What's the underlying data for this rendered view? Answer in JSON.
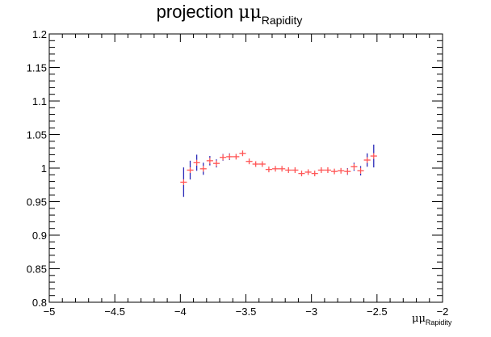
{
  "chart_data": {
    "type": "scatter",
    "title_main": "projection ",
    "title_greek": "μμ",
    "title_sub": "Rapidity",
    "xlabel_greek": "μμ",
    "xlabel_sub": "Rapidity",
    "ylabel": "",
    "xlim": [
      -5,
      -2
    ],
    "ylim": [
      0.8,
      1.2
    ],
    "x_ticks": [
      -5,
      -4.5,
      -4,
      -3.5,
      -3,
      -2.5,
      -2
    ],
    "x_tick_labels": [
      "−5",
      "−4.5",
      "−4",
      "−3.5",
      "−3",
      "−2.5",
      "−2"
    ],
    "y_ticks": [
      0.8,
      0.85,
      0.9,
      0.95,
      1,
      1.05,
      1.1,
      1.15,
      1.2
    ],
    "y_tick_labels": [
      "0.8",
      "0.85",
      "0.9",
      "0.95",
      "1",
      "1.05",
      "1.1",
      "1.15",
      "1.2"
    ],
    "grid": false,
    "colors": {
      "marker": "#ff5555",
      "error_bar": "#2a2ab8",
      "axis": "#000000"
    },
    "series": [
      {
        "x_half_width": 0.025,
        "points": [
          {
            "x": -3.975,
            "y": 0.979,
            "err": 0.022
          },
          {
            "x": -3.925,
            "y": 0.997,
            "err": 0.014
          },
          {
            "x": -3.875,
            "y": 1.008,
            "err": 0.012
          },
          {
            "x": -3.825,
            "y": 0.999,
            "err": 0.009
          },
          {
            "x": -3.775,
            "y": 1.011,
            "err": 0.007
          },
          {
            "x": -3.725,
            "y": 1.007,
            "err": 0.006
          },
          {
            "x": -3.675,
            "y": 1.016,
            "err": 0.005
          },
          {
            "x": -3.625,
            "y": 1.017,
            "err": 0.005
          },
          {
            "x": -3.575,
            "y": 1.017,
            "err": 0.004
          },
          {
            "x": -3.525,
            "y": 1.022,
            "err": 0.004
          },
          {
            "x": -3.475,
            "y": 1.01,
            "err": 0.004
          },
          {
            "x": -3.425,
            "y": 1.006,
            "err": 0.004
          },
          {
            "x": -3.375,
            "y": 1.006,
            "err": 0.004
          },
          {
            "x": -3.325,
            "y": 0.998,
            "err": 0.004
          },
          {
            "x": -3.275,
            "y": 0.999,
            "err": 0.004
          },
          {
            "x": -3.225,
            "y": 0.999,
            "err": 0.004
          },
          {
            "x": -3.175,
            "y": 0.997,
            "err": 0.004
          },
          {
            "x": -3.125,
            "y": 0.997,
            "err": 0.004
          },
          {
            "x": -3.075,
            "y": 0.992,
            "err": 0.004
          },
          {
            "x": -3.025,
            "y": 0.994,
            "err": 0.004
          },
          {
            "x": -2.975,
            "y": 0.992,
            "err": 0.004
          },
          {
            "x": -2.925,
            "y": 0.997,
            "err": 0.004
          },
          {
            "x": -2.875,
            "y": 0.997,
            "err": 0.004
          },
          {
            "x": -2.825,
            "y": 0.995,
            "err": 0.004
          },
          {
            "x": -2.775,
            "y": 0.996,
            "err": 0.004
          },
          {
            "x": -2.725,
            "y": 0.995,
            "err": 0.005
          },
          {
            "x": -2.675,
            "y": 1.002,
            "err": 0.006
          },
          {
            "x": -2.625,
            "y": 0.996,
            "err": 0.007
          },
          {
            "x": -2.575,
            "y": 1.012,
            "err": 0.01
          },
          {
            "x": -2.525,
            "y": 1.018,
            "err": 0.017
          }
        ]
      }
    ]
  }
}
